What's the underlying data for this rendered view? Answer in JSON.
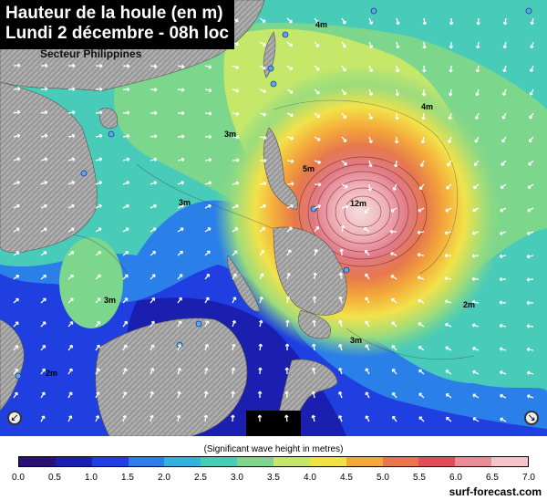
{
  "title": {
    "line1": "Hauteur de la houle (en m)",
    "line2": "Lundi 2 décembre - 08h loc"
  },
  "sector": "Secteur Philippines",
  "legend": {
    "caption": "(Significant wave height in metres)",
    "ticks": [
      "0.0",
      "0.5",
      "1.0",
      "1.5",
      "2.0",
      "2.5",
      "3.0",
      "3.5",
      "4.0",
      "4.5",
      "5.0",
      "5.5",
      "6.0",
      "6.5",
      "7.0"
    ],
    "colors": [
      "#2a0f78",
      "#1a1fb0",
      "#1f3fe0",
      "#2a7fe8",
      "#35b0e0",
      "#48cbb8",
      "#7cd68c",
      "#c6e86a",
      "#f2e24a",
      "#f4a83a",
      "#e9774a",
      "#e04e5a",
      "#ec8a96",
      "#f3c4ca"
    ]
  },
  "credit": "surf-forecast.com",
  "contour_labels": [
    "4m",
    "5m",
    "3m",
    "3m",
    "2m",
    "4m",
    "3m",
    "2m",
    "3m",
    "12m"
  ],
  "icons": {
    "left": "arrow-down-left-icon",
    "right": "arrow-down-right-icon"
  }
}
